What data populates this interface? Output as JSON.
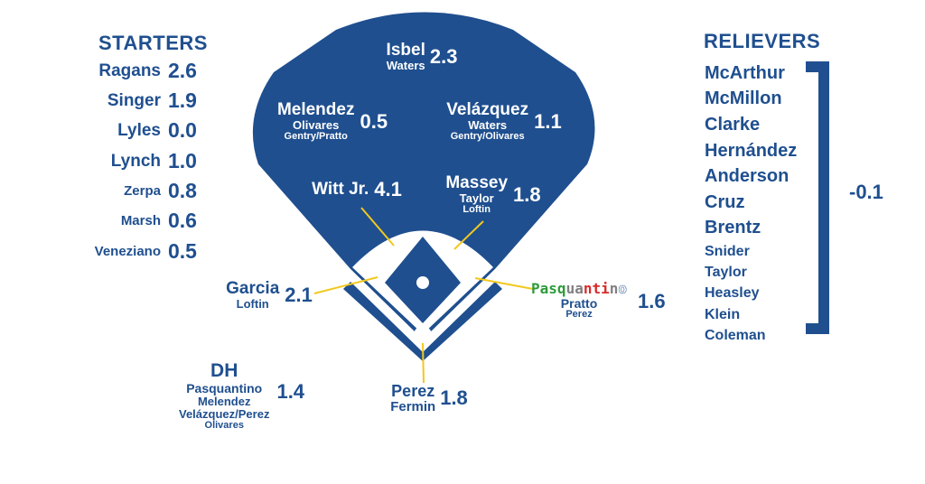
{
  "colors": {
    "navy": "#1f4f8f",
    "white": "#ffffff",
    "line_yellow": "#f2c81e",
    "green": "#2e9b3a",
    "red": "#d62a2a",
    "gray": "#808080"
  },
  "starters": {
    "heading": "STARTERS",
    "items": [
      {
        "name": "Ragans",
        "war": "2.6"
      },
      {
        "name": "Singer",
        "war": "1.9"
      },
      {
        "name": "Lyles",
        "war": "0.0"
      },
      {
        "name": "Lynch",
        "war": "1.0"
      },
      {
        "name": "Zerpa",
        "war": "0.8"
      },
      {
        "name": "Marsh",
        "war": "0.6"
      },
      {
        "name": "Veneziano",
        "war": "0.5"
      }
    ]
  },
  "relievers": {
    "heading": "RELIEVERS",
    "war": "-0.1",
    "items": [
      "McArthur",
      "McMillon",
      "Clarke",
      "Hernández",
      "Anderson",
      "Cruz",
      "Brentz",
      "Snider",
      "Taylor",
      "Heasley",
      "Klein",
      "Coleman"
    ]
  },
  "field": {
    "cf": {
      "name": "Isbel",
      "war": "2.3",
      "backup": "Waters"
    },
    "lf": {
      "name": "Melendez",
      "war": "0.5",
      "backup": "Olivares",
      "backup2": "Gentry/Pratto"
    },
    "rf": {
      "name": "Velázquez",
      "war": "1.1",
      "backup": "Waters",
      "backup2": "Gentry/Olivares"
    },
    "ss": {
      "name": "Witt Jr.",
      "war": "4.1"
    },
    "second": {
      "name": "Massey",
      "war": "1.8",
      "backup": "Taylor",
      "backup2": "Loftin"
    },
    "third": {
      "name": "Garcia",
      "war": "2.1",
      "backup": "Loftin"
    },
    "first": {
      "name_letters": [
        "P",
        "a",
        "s",
        "q",
        "u",
        "a",
        "n",
        "t",
        "i",
        "n",
        "o"
      ],
      "war": "1.6",
      "backup": "Pratto",
      "backup2": "Perez"
    },
    "catcher": {
      "name": "Perez",
      "war": "1.8",
      "backup": "Fermin"
    },
    "dh": {
      "heading": "DH",
      "name": "Pasquantino",
      "war": "1.4",
      "backup": "Melendez",
      "backup2": "Velázquez/Perez",
      "backup3": "Olivares"
    }
  }
}
